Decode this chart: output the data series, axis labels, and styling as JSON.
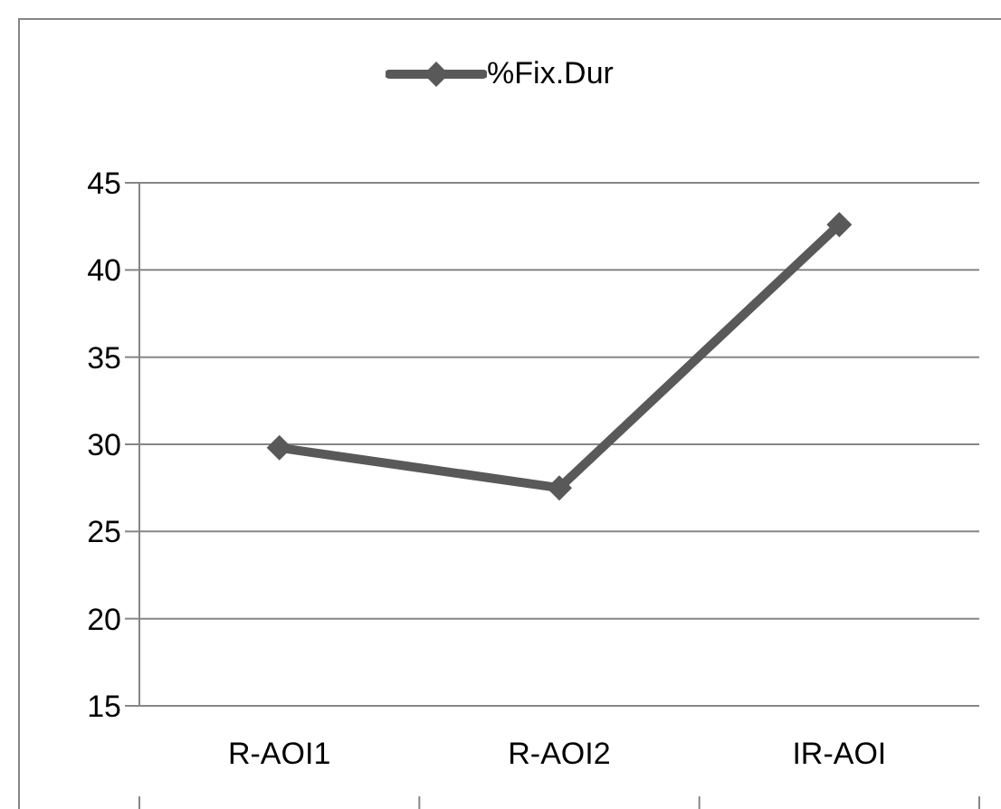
{
  "chart_data": {
    "type": "line",
    "categories": [
      "R-AOI1",
      "R-AOI2",
      "IR-AOI"
    ],
    "series": [
      {
        "name": "%Fix.Dur",
        "color": "#595959",
        "values": [
          29.8,
          27.5,
          42.6
        ]
      }
    ],
    "ylim": [
      15,
      45
    ],
    "yticks": [
      15,
      20,
      25,
      30,
      35,
      40,
      45
    ],
    "grid": "y",
    "legend": "top",
    "marker": "diamond",
    "line_style": "solid"
  }
}
